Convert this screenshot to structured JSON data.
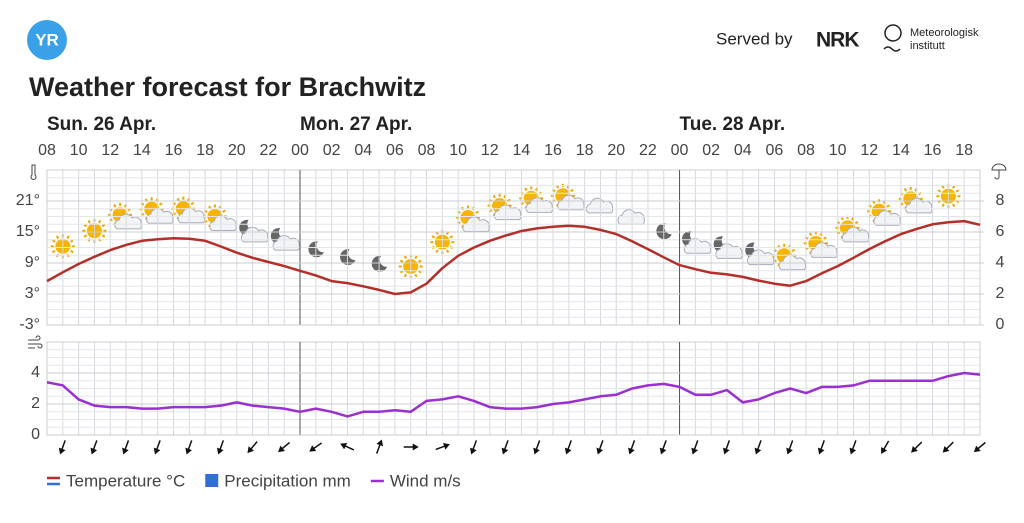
{
  "header": {
    "logo": "YR",
    "title": "Weather forecast for Brachwitz",
    "served_by": "Served by",
    "nrk": "NRK",
    "met_line1": "Meteorologisk",
    "met_line2": "institutt"
  },
  "chart_data": [
    {
      "type": "line",
      "day_labels": [
        {
          "value": 8,
          "label": "Sun. 26 Apr."
        },
        {
          "value": 24,
          "label": "Mon. 27 Apr."
        },
        {
          "value": 48,
          "label": "Tue. 28 Apr."
        }
      ],
      "xlim": [
        8,
        67
      ],
      "xticks": [
        {
          "value": 8,
          "label": "08"
        },
        {
          "value": 10,
          "label": "10"
        },
        {
          "value": 12,
          "label": "12"
        },
        {
          "value": 14,
          "label": "14"
        },
        {
          "value": 16,
          "label": "16"
        },
        {
          "value": 18,
          "label": "18"
        },
        {
          "value": 20,
          "label": "20"
        },
        {
          "value": 22,
          "label": "22"
        },
        {
          "value": 24,
          "label": "00"
        },
        {
          "value": 26,
          "label": "02"
        },
        {
          "value": 28,
          "label": "04"
        },
        {
          "value": 30,
          "label": "06"
        },
        {
          "value": 32,
          "label": "08"
        },
        {
          "value": 34,
          "label": "10"
        },
        {
          "value": 36,
          "label": "12"
        },
        {
          "value": 38,
          "label": "14"
        },
        {
          "value": 40,
          "label": "16"
        },
        {
          "value": 42,
          "label": "18"
        },
        {
          "value": 44,
          "label": "20"
        },
        {
          "value": 46,
          "label": "22"
        },
        {
          "value": 48,
          "label": "00"
        },
        {
          "value": 50,
          "label": "02"
        },
        {
          "value": 52,
          "label": "04"
        },
        {
          "value": 54,
          "label": "06"
        },
        {
          "value": 56,
          "label": "08"
        },
        {
          "value": 58,
          "label": "10"
        },
        {
          "value": 60,
          "label": "12"
        },
        {
          "value": 62,
          "label": "14"
        },
        {
          "value": 64,
          "label": "16"
        },
        {
          "value": 66,
          "label": "18"
        }
      ],
      "x": [
        8,
        9,
        10,
        11,
        12,
        13,
        14,
        15,
        16,
        17,
        18,
        19,
        20,
        21,
        22,
        23,
        24,
        25,
        26,
        27,
        28,
        29,
        30,
        31,
        32,
        33,
        34,
        35,
        36,
        37,
        38,
        39,
        40,
        41,
        42,
        43,
        44,
        45,
        46,
        47,
        48,
        49,
        50,
        51,
        52,
        53,
        54,
        55,
        56,
        57,
        58,
        59,
        60,
        61,
        62,
        63,
        64,
        65,
        66,
        67
      ],
      "ylim": [
        -3,
        27
      ],
      "yticks": [
        {
          "value": -3,
          "label": "-3°"
        },
        {
          "value": 3,
          "label": "3°"
        },
        {
          "value": 9,
          "label": "9°"
        },
        {
          "value": 15,
          "label": "15°"
        },
        {
          "value": 21,
          "label": "21°"
        }
      ],
      "y2lim": [
        0,
        10
      ],
      "y2ticks": [
        0,
        2,
        4,
        6,
        8
      ],
      "series": [
        {
          "name": "Temperature °C",
          "color": "#b3302a",
          "values": [
            5.5,
            7.2,
            8.8,
            10.2,
            11.5,
            12.5,
            13.3,
            13.6,
            13.8,
            13.7,
            13.3,
            12.2,
            11,
            10,
            9.2,
            8.4,
            7.5,
            6.6,
            5.5,
            5.1,
            4.5,
            3.8,
            3,
            3.3,
            5,
            8,
            10.4,
            12,
            13.3,
            14.3,
            15.2,
            15.7,
            16,
            16.2,
            16,
            15.4,
            14.6,
            13.2,
            11.7,
            10.1,
            8.6,
            7.8,
            7.1,
            6.8,
            6.3,
            5.6,
            5,
            4.6,
            5.5,
            7,
            8.4,
            10,
            11.7,
            13.2,
            14.6,
            15.6,
            16.5,
            16.9,
            17.1,
            16.4
          ]
        },
        {
          "name": "Precipitation mm",
          "color": "#2f6fd6",
          "axis": "y2",
          "values": [
            null,
            null,
            null,
            null,
            null,
            null,
            null,
            null,
            null,
            null,
            null,
            null,
            null,
            null,
            null,
            null,
            null,
            null,
            null,
            null,
            null,
            null,
            null,
            null,
            null,
            null,
            null,
            null,
            null,
            null,
            null,
            null,
            null,
            null,
            null,
            null,
            null,
            null,
            null,
            null,
            null,
            null,
            null,
            null,
            null,
            null,
            null,
            null,
            null,
            null,
            null,
            null,
            null,
            null,
            null,
            null,
            null,
            null,
            null,
            null
          ]
        }
      ]
    },
    {
      "type": "line",
      "xlim": [
        8,
        67
      ],
      "x": [
        8,
        9,
        10,
        11,
        12,
        13,
        14,
        15,
        16,
        17,
        18,
        19,
        20,
        21,
        22,
        23,
        24,
        25,
        26,
        27,
        28,
        29,
        30,
        31,
        32,
        33,
        34,
        35,
        36,
        37,
        38,
        39,
        40,
        41,
        42,
        43,
        44,
        45,
        46,
        47,
        48,
        49,
        50,
        51,
        52,
        53,
        54,
        55,
        56,
        57,
        58,
        59,
        60,
        61,
        62,
        63,
        64,
        65,
        66,
        67
      ],
      "ylim": [
        0,
        6
      ],
      "yticks": [
        0,
        2,
        4
      ],
      "series": [
        {
          "name": "Wind m/s",
          "color": "#9b30d0",
          "values": [
            3.4,
            3.2,
            2.3,
            1.9,
            1.8,
            1.8,
            1.7,
            1.7,
            1.8,
            1.8,
            1.8,
            1.9,
            2.1,
            1.9,
            1.8,
            1.7,
            1.5,
            1.7,
            1.5,
            1.2,
            1.5,
            1.5,
            1.6,
            1.5,
            2.2,
            2.3,
            2.5,
            2.2,
            1.8,
            1.7,
            1.7,
            1.8,
            2,
            2.1,
            2.3,
            2.5,
            2.6,
            3,
            3.2,
            3.3,
            3.1,
            2.6,
            2.6,
            2.9,
            2.1,
            2.3,
            2.7,
            3,
            2.7,
            3.1,
            3.1,
            3.2,
            3.5,
            3.5,
            3.5,
            3.5,
            3.5,
            3.8,
            4,
            3.9
          ]
        }
      ]
    }
  ]
}
